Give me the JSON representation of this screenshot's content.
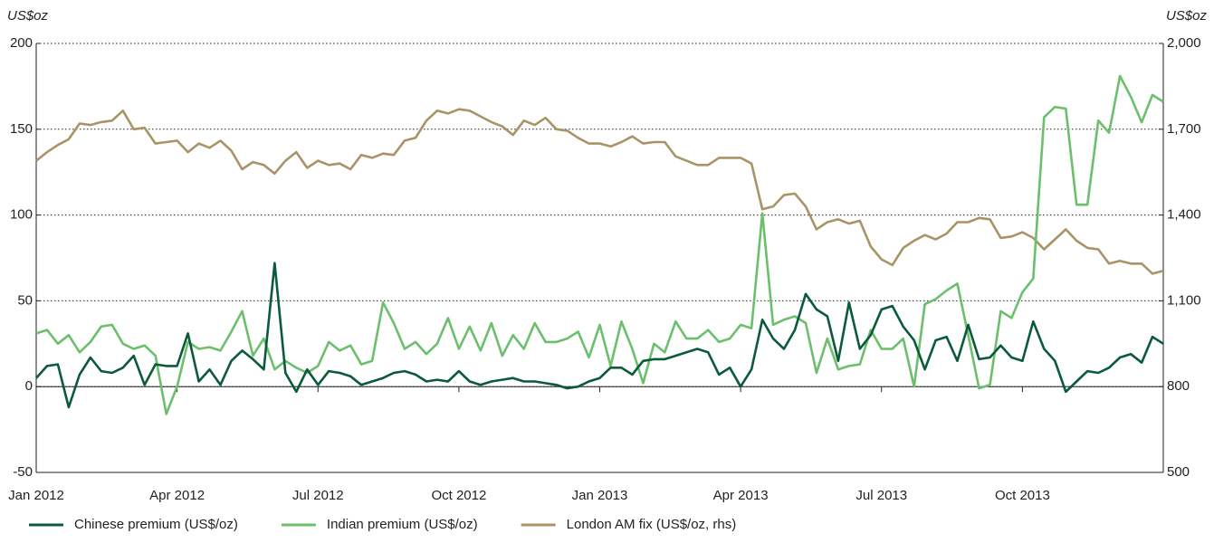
{
  "chart_data": {
    "type": "line",
    "ylabel": "US$oz",
    "y2label": "US$oz",
    "categories": [
      "Jan 2012",
      null,
      null,
      null,
      null,
      null,
      null,
      null,
      null,
      null,
      null,
      null,
      null,
      "Apr 2012",
      null,
      null,
      null,
      null,
      null,
      null,
      null,
      null,
      null,
      null,
      null,
      null,
      "Jul 2012",
      null,
      null,
      null,
      null,
      null,
      null,
      null,
      null,
      null,
      null,
      null,
      null,
      "Oct 2012",
      null,
      null,
      null,
      null,
      null,
      null,
      null,
      null,
      null,
      null,
      null,
      null,
      "Jan 2013",
      null,
      null,
      null,
      null,
      null,
      null,
      null,
      null,
      null,
      null,
      null,
      null,
      "Apr 2013",
      null,
      null,
      null,
      null,
      null,
      null,
      null,
      null,
      null,
      null,
      null,
      null,
      "Jul 2013",
      null,
      null,
      null,
      null,
      null,
      null,
      null,
      null,
      null,
      null,
      null,
      null,
      "Oct 2013",
      null,
      null,
      null,
      null,
      null,
      null,
      null,
      null,
      null,
      null,
      null,
      null,
      null
    ],
    "ylim": [
      -50,
      200
    ],
    "yticks": [
      -50,
      0,
      50,
      100,
      150,
      200
    ],
    "y2lim": [
      500,
      2000
    ],
    "y2ticks": [
      500,
      800,
      {
        "value": 1100,
        "label": "1,100"
      },
      {
        "value": 1400,
        "label": "1,400"
      },
      {
        "value": 1700,
        "label": "1,700"
      },
      {
        "value": 2000,
        "label": "2,000"
      }
    ],
    "grid": true,
    "legend": "bottom",
    "series": [
      {
        "name": "Chinese premium (US$/oz)",
        "color": "#0b5a3a",
        "values": [
          5,
          12,
          13,
          -12,
          7,
          17,
          9,
          8,
          11,
          18,
          1,
          13,
          12,
          12,
          31,
          3,
          10,
          1,
          15,
          21,
          16,
          10,
          72,
          8,
          -3,
          10,
          1,
          9,
          8,
          6,
          1,
          3,
          5,
          8,
          9,
          7,
          3,
          4,
          3,
          9,
          3,
          1,
          3,
          4,
          5,
          3,
          3,
          2,
          1,
          -1,
          0,
          3,
          5,
          11,
          11,
          7,
          15,
          16,
          16,
          18,
          20,
          22,
          20,
          7,
          11,
          0,
          10,
          39,
          28,
          22,
          33,
          54,
          45,
          41,
          15,
          49,
          22,
          30,
          45,
          47,
          35,
          27,
          10,
          27,
          29,
          15,
          36,
          16,
          17,
          24,
          17,
          15,
          38,
          22,
          15,
          -3,
          3,
          9,
          8,
          11,
          17,
          19,
          14,
          29,
          25
        ]
      },
      {
        "name": "Indian premium (US$/oz)",
        "color": "#6cbf6c",
        "values": [
          31,
          33,
          25,
          30,
          20,
          26,
          35,
          36,
          25,
          22,
          24,
          18,
          -16,
          0,
          26,
          22,
          23,
          21,
          32,
          44,
          18,
          28,
          10,
          15,
          11,
          8,
          12,
          26,
          21,
          24,
          13,
          15,
          49,
          37,
          22,
          26,
          19,
          25,
          40,
          22,
          35,
          21,
          37,
          18,
          30,
          22,
          37,
          26,
          26,
          28,
          32,
          17,
          36,
          12,
          38,
          22,
          2,
          25,
          20,
          38,
          28,
          28,
          33,
          26,
          28,
          36,
          34,
          101,
          36,
          39,
          41,
          37,
          8,
          28,
          10,
          12,
          13,
          33,
          22,
          22,
          28,
          0,
          48,
          51,
          56,
          60,
          30,
          -1,
          1,
          44,
          40,
          55,
          63,
          157,
          163,
          162,
          106,
          106,
          155,
          148,
          181,
          169,
          154,
          170,
          166
        ]
      },
      {
        "name": "London AM fix (US$/oz, rhs)",
        "color": "#a89466",
        "axis": "y2",
        "values": [
          1590,
          1620,
          1645,
          1665,
          1720,
          1715,
          1725,
          1730,
          1765,
          1700,
          1705,
          1650,
          1655,
          1660,
          1620,
          1650,
          1635,
          1660,
          1625,
          1560,
          1585,
          1575,
          1545,
          1590,
          1620,
          1565,
          1590,
          1575,
          1580,
          1560,
          1610,
          1600,
          1615,
          1610,
          1660,
          1670,
          1730,
          1765,
          1755,
          1770,
          1765,
          1745,
          1725,
          1710,
          1680,
          1730,
          1715,
          1740,
          1700,
          1695,
          1670,
          1650,
          1650,
          1640,
          1655,
          1675,
          1650,
          1655,
          1655,
          1605,
          1590,
          1575,
          1575,
          1600,
          1600,
          1600,
          1580,
          1420,
          1430,
          1470,
          1475,
          1430,
          1350,
          1375,
          1385,
          1370,
          1380,
          1290,
          1245,
          1225,
          1285,
          1310,
          1330,
          1315,
          1335,
          1375,
          1375,
          1390,
          1385,
          1320,
          1325,
          1340,
          1320,
          1280,
          1315,
          1350,
          1310,
          1285,
          1280,
          1230,
          1240,
          1230,
          1230,
          1195,
          1205
        ]
      }
    ]
  }
}
